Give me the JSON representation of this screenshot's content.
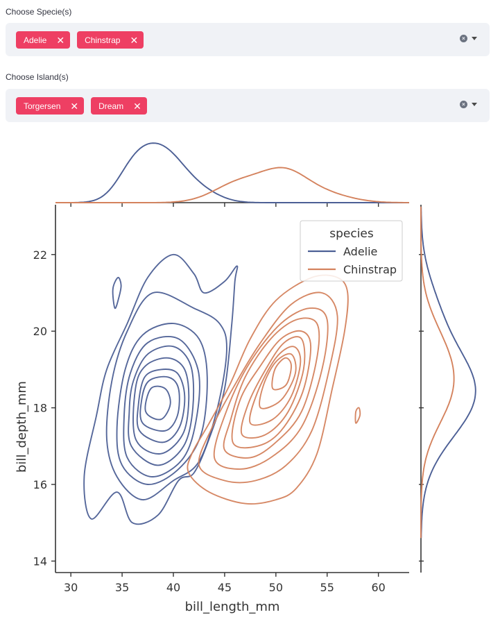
{
  "species_select": {
    "label": "Choose Specie(s)",
    "tags": [
      "Adelie",
      "Chinstrap"
    ]
  },
  "island_select": {
    "label": "Choose Island(s)",
    "tags": [
      "Torgersen",
      "Dream"
    ]
  },
  "icons": {
    "tag_remove": "close-icon",
    "clear": "clear-all-icon",
    "dropdown": "chevron-down-icon"
  },
  "colors": {
    "tag": "#ee3f63",
    "adelie": "#4c5f95",
    "chinstrap": "#d4825d"
  },
  "chart_data": {
    "type": "kde-jointplot",
    "xlabel": "bill_length_mm",
    "ylabel": "bill_depth_mm",
    "xlim": [
      28.5,
      63
    ],
    "ylim": [
      13.7,
      23.3
    ],
    "xticks": [
      30,
      35,
      40,
      45,
      50,
      55,
      60
    ],
    "yticks": [
      14,
      16,
      18,
      20,
      22
    ],
    "legend": {
      "title": "species",
      "placement": "top-right"
    },
    "series": [
      {
        "name": "Adelie",
        "center": [
          38.8,
          18.35
        ],
        "contours": [
          [
            [
              34.5,
              15.8
            ],
            [
              36,
              15.0
            ],
            [
              38.5,
              15.2
            ],
            [
              40.5,
              16.1
            ],
            [
              42,
              16.3
            ],
            [
              43.5,
              17.2
            ],
            [
              45,
              18.5
            ],
            [
              45.7,
              20.2
            ],
            [
              46,
              21.3
            ],
            [
              46.2,
              21.7
            ],
            [
              45,
              21.3
            ],
            [
              43,
              21.0
            ],
            [
              42,
              21.5
            ],
            [
              40,
              22.0
            ],
            [
              37.5,
              21.4
            ],
            [
              35.5,
              20.2
            ],
            [
              33.5,
              19.0
            ],
            [
              32.5,
              17.8
            ],
            [
              31.3,
              16.2
            ],
            [
              32,
              15.1
            ]
          ],
          [
            [
              34.5,
              16.2
            ],
            [
              37,
              15.6
            ],
            [
              40,
              16.1
            ],
            [
              42.5,
              16.6
            ],
            [
              44.3,
              18.0
            ],
            [
              45.2,
              19.5
            ],
            [
              44.5,
              20.2
            ],
            [
              42,
              20.6
            ],
            [
              38,
              21.0
            ],
            [
              35.5,
              20.0
            ],
            [
              34,
              18.7
            ],
            [
              33.5,
              17.2
            ]
          ],
          [
            [
              35,
              16.5
            ],
            [
              37.5,
              16.0
            ],
            [
              40.5,
              16.4
            ],
            [
              42.7,
              17.3
            ],
            [
              43.3,
              18.8
            ],
            [
              42.5,
              19.8
            ],
            [
              40,
              20.2
            ],
            [
              37,
              19.9
            ],
            [
              35.3,
              19.0
            ],
            [
              34.5,
              17.5
            ]
          ],
          [
            [
              35.5,
              16.7
            ],
            [
              38,
              16.2
            ],
            [
              41,
              16.7
            ],
            [
              42.3,
              17.8
            ],
            [
              42.4,
              19.0
            ],
            [
              40.5,
              19.8
            ],
            [
              37.5,
              19.7
            ],
            [
              35.8,
              18.9
            ],
            [
              35.2,
              17.8
            ]
          ],
          [
            [
              35.9,
              17.0
            ],
            [
              38.5,
              16.5
            ],
            [
              41,
              17.0
            ],
            [
              41.9,
              18.0
            ],
            [
              41.7,
              19.1
            ],
            [
              40,
              19.6
            ],
            [
              37.5,
              19.4
            ],
            [
              36.1,
              18.7
            ],
            [
              35.7,
              17.9
            ]
          ],
          [
            [
              36.3,
              17.2
            ],
            [
              38.7,
              16.8
            ],
            [
              40.9,
              17.3
            ],
            [
              41.5,
              18.2
            ],
            [
              41.1,
              19.0
            ],
            [
              39.5,
              19.3
            ],
            [
              37.3,
              19.1
            ],
            [
              36.3,
              18.5
            ]
          ],
          [
            [
              36.7,
              17.4
            ],
            [
              39,
              17.1
            ],
            [
              40.6,
              17.5
            ],
            [
              41.1,
              18.3
            ],
            [
              40.4,
              18.9
            ],
            [
              38.8,
              19.0
            ],
            [
              37.2,
              18.8
            ],
            [
              36.6,
              18.1
            ]
          ],
          [
            [
              37,
              17.6
            ],
            [
              39.2,
              17.4
            ],
            [
              40.4,
              17.8
            ],
            [
              40.5,
              18.5
            ],
            [
              39.5,
              18.8
            ],
            [
              37.6,
              18.7
            ],
            [
              36.9,
              18.2
            ]
          ],
          [
            [
              37.3,
              17.9
            ],
            [
              38.8,
              17.7
            ],
            [
              39.7,
              18.1
            ],
            [
              39.2,
              18.5
            ],
            [
              37.8,
              18.5
            ]
          ],
          [
            [
              34.3,
              20.6
            ],
            [
              34.7,
              20.9
            ],
            [
              34.9,
              21.2
            ],
            [
              34.6,
              21.4
            ],
            [
              34.1,
              21.1
            ]
          ]
        ]
      },
      {
        "name": "Chinstrap",
        "center": [
          50.9,
          18.95
        ],
        "contours": [
          [
            [
              41.5,
              16.3
            ],
            [
              43.5,
              15.8
            ],
            [
              47,
              15.5
            ],
            [
              50,
              15.6
            ],
            [
              52,
              15.9
            ],
            [
              54,
              16.8
            ],
            [
              55.5,
              18.5
            ],
            [
              56.7,
              20.0
            ],
            [
              57,
              21.0
            ],
            [
              56,
              21.4
            ],
            [
              53.5,
              21.4
            ],
            [
              50,
              20.8
            ],
            [
              47.5,
              19.8
            ],
            [
              45.5,
              18.6
            ],
            [
              43.5,
              17.6
            ],
            [
              41.8,
              16.8
            ]
          ],
          [
            [
              42.5,
              16.5
            ],
            [
              45,
              16.1
            ],
            [
              48,
              16.1
            ],
            [
              51,
              16.5
            ],
            [
              53.5,
              17.4
            ],
            [
              55.2,
              19.0
            ],
            [
              56,
              20.4
            ],
            [
              54.5,
              21.0
            ],
            [
              51.5,
              20.7
            ],
            [
              48.5,
              19.7
            ],
            [
              46,
              18.6
            ],
            [
              43.8,
              17.5
            ]
          ],
          [
            [
              44,
              16.7
            ],
            [
              46.5,
              16.4
            ],
            [
              49.5,
              16.7
            ],
            [
              52.5,
              17.5
            ],
            [
              54.5,
              19.0
            ],
            [
              55,
              20.3
            ],
            [
              53.3,
              20.6
            ],
            [
              50.5,
              20.2
            ],
            [
              47.5,
              19.2
            ],
            [
              45.3,
              18.0
            ]
          ],
          [
            [
              45,
              16.9
            ],
            [
              47.5,
              16.7
            ],
            [
              50,
              17.1
            ],
            [
              52.5,
              17.9
            ],
            [
              54,
              19.3
            ],
            [
              54,
              20.2
            ],
            [
              52,
              20.3
            ],
            [
              49.5,
              19.8
            ],
            [
              47,
              18.8
            ],
            [
              45.6,
              17.7
            ]
          ],
          [
            [
              45.8,
              17.1
            ],
            [
              48.2,
              17.0
            ],
            [
              50.5,
              17.4
            ],
            [
              52.6,
              18.4
            ],
            [
              53.4,
              19.6
            ],
            [
              52.5,
              20.0
            ],
            [
              50.5,
              19.8
            ],
            [
              48.5,
              19.1
            ],
            [
              46.5,
              18.2
            ]
          ],
          [
            [
              46.7,
              17.3
            ],
            [
              49,
              17.3
            ],
            [
              51.2,
              17.9
            ],
            [
              52.7,
              19.0
            ],
            [
              52.5,
              19.8
            ],
            [
              50.8,
              19.7
            ],
            [
              49,
              19.0
            ],
            [
              47.3,
              18.1
            ]
          ],
          [
            [
              47.5,
              17.6
            ],
            [
              49.7,
              17.7
            ],
            [
              51.5,
              18.3
            ],
            [
              52.4,
              19.2
            ],
            [
              51.7,
              19.6
            ],
            [
              50,
              19.3
            ],
            [
              48.2,
              18.4
            ]
          ],
          [
            [
              48.5,
              18.0
            ],
            [
              50.5,
              18.2
            ],
            [
              51.9,
              18.9
            ],
            [
              51.5,
              19.4
            ],
            [
              50,
              19.2
            ],
            [
              48.8,
              18.6
            ]
          ],
          [
            [
              49.7,
              18.5
            ],
            [
              51,
              18.6
            ],
            [
              51.5,
              19.1
            ],
            [
              50.9,
              19.3
            ],
            [
              49.9,
              19.0
            ]
          ],
          [
            [
              57.8,
              17.6
            ],
            [
              58.2,
              17.8
            ],
            [
              58.1,
              18.0
            ],
            [
              57.8,
              17.9
            ]
          ]
        ]
      }
    ]
  }
}
